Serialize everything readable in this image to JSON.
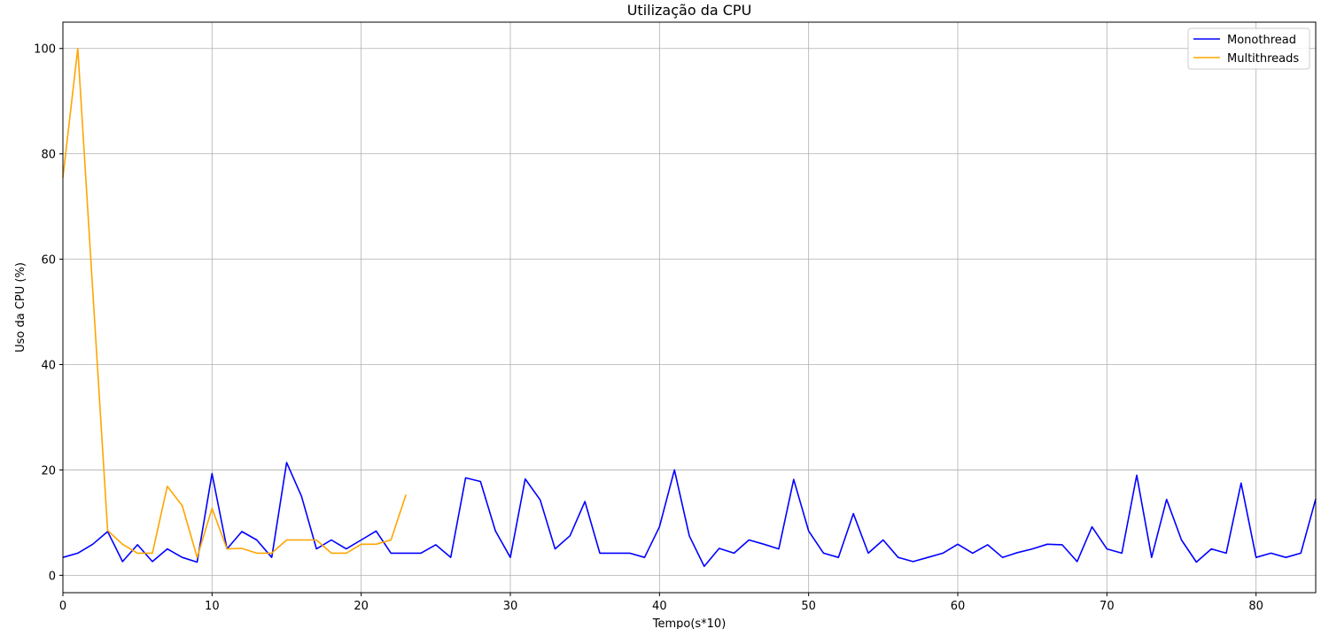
{
  "chart_data": {
    "type": "line",
    "title": "Utilização da CPU",
    "xlabel": "Tempo(s*10)",
    "ylabel": "Uso da CPU (%)",
    "xlim": [
      0,
      84
    ],
    "ylim": [
      -3.3,
      105
    ],
    "xticks": [
      0,
      10,
      20,
      30,
      40,
      50,
      60,
      70,
      80
    ],
    "yticks": [
      0,
      20,
      40,
      60,
      80,
      100
    ],
    "grid": true,
    "legend": "top-right",
    "series": [
      {
        "name": "Monothread",
        "color": "#0000ff",
        "x": [
          0,
          1,
          2,
          3,
          4,
          5,
          6,
          7,
          8,
          9,
          10,
          11,
          12,
          13,
          14,
          15,
          16,
          17,
          18,
          19,
          20,
          21,
          22,
          23,
          24,
          25,
          26,
          27,
          28,
          29,
          30,
          31,
          32,
          33,
          34,
          35,
          36,
          37,
          38,
          39,
          40,
          41,
          42,
          43,
          44,
          45,
          46,
          47,
          48,
          49,
          50,
          51,
          52,
          53,
          54,
          55,
          56,
          57,
          58,
          59,
          60,
          61,
          62,
          63,
          64,
          65,
          66,
          67,
          68,
          69,
          70,
          71,
          72,
          73,
          74,
          75,
          76,
          77,
          78,
          79,
          80,
          81,
          82,
          83,
          84
        ],
        "values": [
          3.4,
          4.2,
          5.9,
          8.3,
          2.6,
          5.8,
          2.6,
          5.0,
          3.4,
          2.5,
          19.3,
          5.0,
          8.3,
          6.7,
          3.4,
          21.4,
          15.0,
          5.0,
          6.7,
          5.0,
          6.7,
          8.4,
          4.2,
          4.2,
          4.2,
          5.8,
          3.4,
          18.5,
          17.8,
          8.4,
          3.4,
          18.3,
          14.3,
          5.0,
          7.5,
          14.0,
          4.2,
          4.2,
          4.2,
          3.4,
          9.2,
          20.0,
          7.5,
          1.7,
          5.1,
          4.2,
          6.7,
          5.9,
          5.0,
          18.2,
          8.4,
          4.2,
          3.4,
          11.7,
          4.2,
          6.7,
          3.4,
          2.6,
          3.4,
          4.2,
          5.9,
          4.2,
          5.8,
          3.4,
          4.3,
          5.0,
          5.9,
          5.8,
          2.6,
          9.2,
          5.0,
          4.2,
          19.0,
          3.4,
          14.4,
          6.7,
          2.5,
          5.0,
          4.2,
          17.5,
          3.4,
          4.2,
          3.4,
          4.2,
          14.5
        ]
      },
      {
        "name": "Multithreads",
        "color": "#ffa500",
        "x": [
          0,
          1,
          2,
          3,
          4,
          5,
          6,
          7,
          8,
          9,
          10,
          11,
          12,
          13,
          14,
          15,
          16,
          17,
          18,
          19,
          20,
          21,
          22,
          23
        ],
        "values": [
          75.5,
          100.0,
          54.0,
          8.5,
          5.9,
          4.2,
          4.2,
          16.9,
          13.2,
          3.4,
          12.7,
          5.0,
          5.1,
          4.2,
          4.2,
          6.7,
          6.7,
          6.7,
          4.2,
          4.2,
          5.9,
          5.9,
          6.7,
          15.3
        ]
      }
    ]
  }
}
